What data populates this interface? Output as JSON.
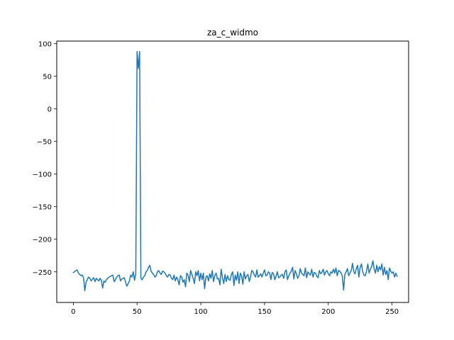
{
  "chart_data": {
    "type": "line",
    "title": "za_c_widmo",
    "xlabel": "",
    "ylabel": "",
    "xlim": [
      -13,
      263
    ],
    "ylim": [
      -297,
      104
    ],
    "xticks": [
      0,
      50,
      100,
      150,
      200,
      250
    ],
    "yticks": [
      100,
      50,
      0,
      -50,
      -100,
      -150,
      -200,
      -250
    ],
    "xtick_labels": [
      "0",
      "50",
      "100",
      "150",
      "200",
      "250"
    ],
    "ytick_labels": [
      "100",
      "50",
      "0",
      "−50",
      "−100",
      "−150",
      "−200",
      "−250"
    ],
    "grid": false,
    "line_color": "#1f77b4",
    "series": [
      {
        "x_start": 0,
        "x_step": 1,
        "values": [
          -251,
          -250,
          -248,
          -247,
          -252,
          -254,
          -256,
          -255,
          -259,
          -279,
          -266,
          -262,
          -258,
          -260,
          -264,
          -261,
          -259,
          -265,
          -260,
          -262,
          -264,
          -260,
          -263,
          -275,
          -264,
          -266,
          -262,
          -260,
          -258,
          -257,
          -256,
          -255,
          -265,
          -262,
          -258,
          -256,
          -255,
          -264,
          -261,
          -260,
          -259,
          -266,
          -272,
          -268,
          -264,
          -255,
          -258,
          -250,
          -263,
          -253,
          88,
          62,
          88,
          -260,
          -262,
          -258,
          -256,
          -250,
          -248,
          -243,
          -240,
          -249,
          -252,
          -254,
          -258,
          -256,
          -250,
          -248,
          -252,
          -254,
          -249,
          -250,
          -252,
          -256,
          -258,
          -254,
          -255,
          -260,
          -262,
          -255,
          -264,
          -258,
          -262,
          -270,
          -256,
          -258,
          -266,
          -262,
          -273,
          -252,
          -255,
          -265,
          -248,
          -254,
          -260,
          -268,
          -250,
          -256,
          -248,
          -264,
          -252,
          -262,
          -252,
          -276,
          -258,
          -256,
          -264,
          -253,
          -260,
          -248,
          -265,
          -256,
          -252,
          -261,
          -260,
          -270,
          -246,
          -259,
          -268,
          -254,
          -265,
          -256,
          -262,
          -263,
          -254,
          -250,
          -271,
          -255,
          -263,
          -250,
          -268,
          -252,
          -256,
          -269,
          -250,
          -261,
          -256,
          -254,
          -265,
          -258,
          -248,
          -250,
          -255,
          -258,
          -247,
          -258,
          -256,
          -253,
          -258,
          -252,
          -247,
          -256,
          -255,
          -250,
          -252,
          -262,
          -251,
          -253,
          -262,
          -257,
          -250,
          -259,
          -258,
          -255,
          -254,
          -260,
          -250,
          -247,
          -262,
          -256,
          -252,
          -249,
          -243,
          -261,
          -248,
          -253,
          -260,
          -256,
          -245,
          -252,
          -254,
          -256,
          -244,
          -259,
          -250,
          -253,
          -255,
          -246,
          -258,
          -251,
          -252,
          -257,
          -259,
          -248,
          -253,
          -251,
          -246,
          -255,
          -250,
          -248,
          -253,
          -256,
          -250,
          -252,
          -246,
          -252,
          -244,
          -256,
          -248,
          -249,
          -252,
          -256,
          -278,
          -254,
          -250,
          -245,
          -256,
          -252,
          -248,
          -237,
          -250,
          -253,
          -245,
          -240,
          -258,
          -243,
          -238,
          -250,
          -255,
          -256,
          -249,
          -238,
          -252,
          -246,
          -242,
          -233,
          -246,
          -252,
          -240,
          -250,
          -242,
          -247,
          -238,
          -255,
          -243,
          -254,
          -248,
          -262,
          -244,
          -249,
          -252,
          -250,
          -258,
          -252,
          -257
        ]
      }
    ]
  }
}
